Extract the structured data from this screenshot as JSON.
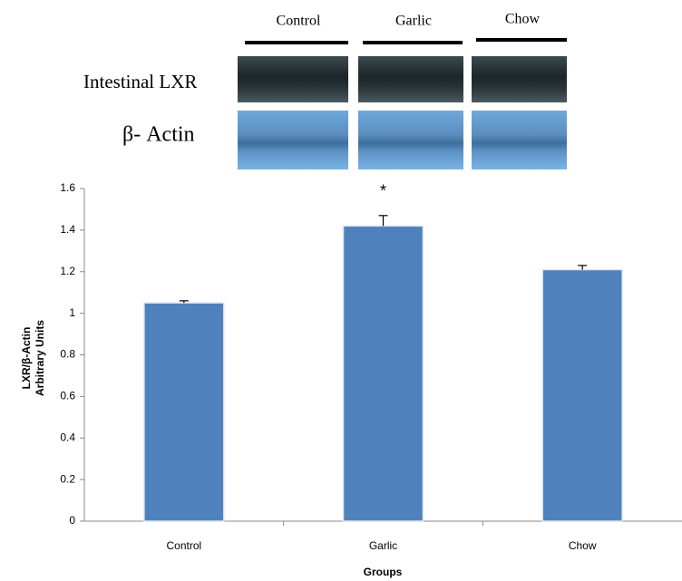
{
  "chart_data": {
    "type": "bar",
    "blot_lanes": [
      "Control",
      "Garlic",
      "Chow"
    ],
    "blot_rows": [
      "Intestinal LXR",
      "β- Actin"
    ],
    "categories": [
      "Control",
      "Garlic",
      "Chow"
    ],
    "series": [
      {
        "name": "LXR/β-Actin",
        "color": "#4f81bd",
        "values": [
          1.05,
          1.42,
          1.21
        ],
        "errors": [
          0.01,
          0.05,
          0.02
        ]
      }
    ],
    "annotations": [
      {
        "text": "*",
        "x": "Garlic"
      }
    ],
    "y_label": [
      "LXR/β-Actin",
      "Arbitrary Units"
    ],
    "x_label": "Groups",
    "ylim": [
      0,
      1.6
    ],
    "yticks": [
      0,
      0.2,
      0.4,
      0.6,
      0.8,
      1,
      1.2,
      1.4,
      1.6
    ],
    "grid": false
  }
}
